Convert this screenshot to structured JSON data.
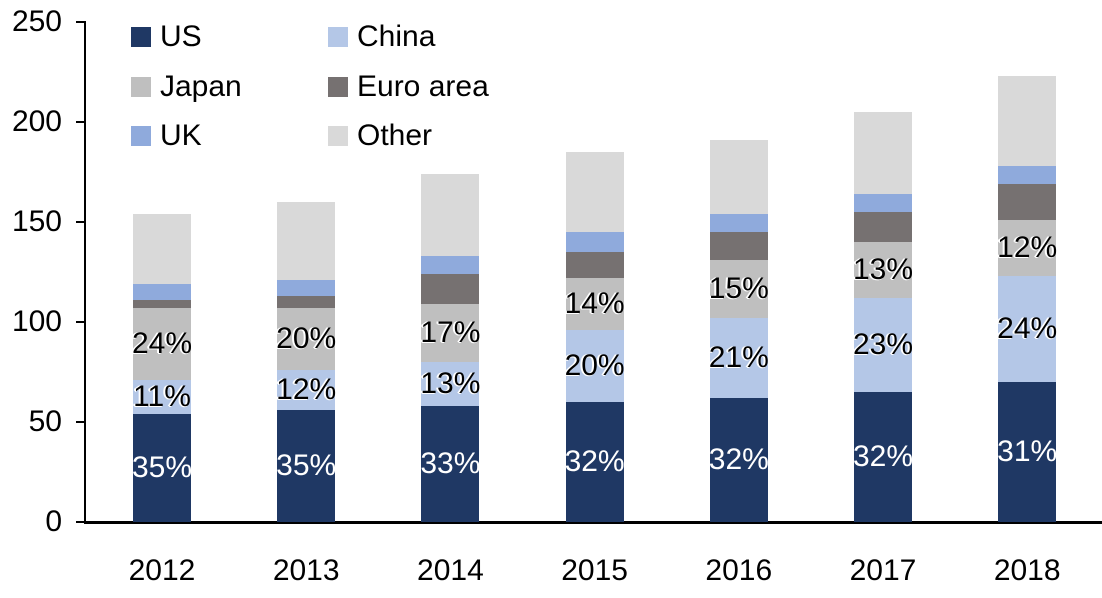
{
  "chart_data": {
    "type": "bar",
    "stacked": true,
    "title": "",
    "xlabel": "",
    "ylabel": "",
    "categories": [
      "2012",
      "2013",
      "2014",
      "2015",
      "2016",
      "2017",
      "2018"
    ],
    "series": [
      {
        "name": "US",
        "color": "#1F3864",
        "values": [
          54,
          56,
          58,
          60,
          62,
          65,
          70
        ],
        "pct_labels": [
          "35%",
          "35%",
          "33%",
          "32%",
          "32%",
          "32%",
          "31%"
        ],
        "label_color": "#FFFFFF"
      },
      {
        "name": "China",
        "color": "#B4C7E7",
        "values": [
          17,
          20,
          22,
          36,
          40,
          47,
          53
        ],
        "pct_labels": [
          "11%",
          "12%",
          "13%",
          "20%",
          "21%",
          "23%",
          "24%"
        ],
        "label_color": "#000000"
      },
      {
        "name": "Japan",
        "color": "#BFBFBF",
        "values": [
          36,
          31,
          29,
          26,
          29,
          28,
          28
        ],
        "pct_labels": [
          "24%",
          "20%",
          "17%",
          "14%",
          "15%",
          "13%",
          "12%"
        ],
        "label_color": "#000000"
      },
      {
        "name": "Euro area",
        "color": "#767171",
        "values": [
          4,
          6,
          15,
          13,
          14,
          15,
          18
        ],
        "pct_labels": null,
        "label_color": null
      },
      {
        "name": "UK",
        "color": "#8FAADC",
        "values": [
          8,
          8,
          9,
          10,
          9,
          9,
          9
        ],
        "pct_labels": null,
        "label_color": null
      },
      {
        "name": "Other",
        "color": "#D9D9D9",
        "values": [
          35,
          39,
          41,
          40,
          37,
          41,
          45
        ],
        "pct_labels": null,
        "label_color": null
      }
    ],
    "stack_order_bottom_to_top": [
      "US",
      "China",
      "Japan",
      "Euro area",
      "UK",
      "Other"
    ],
    "totals_estimated": [
      154,
      160,
      174,
      185,
      191,
      205,
      223
    ],
    "ylim": [
      0,
      250
    ],
    "yticks": [
      0,
      50,
      100,
      150,
      200,
      250
    ],
    "grid": false,
    "axis_color": "#000000",
    "legend": {
      "position": "inside-top-left",
      "columns": 2,
      "items": [
        "US",
        "China",
        "Japan",
        "Euro area",
        "UK",
        "Other"
      ]
    }
  }
}
